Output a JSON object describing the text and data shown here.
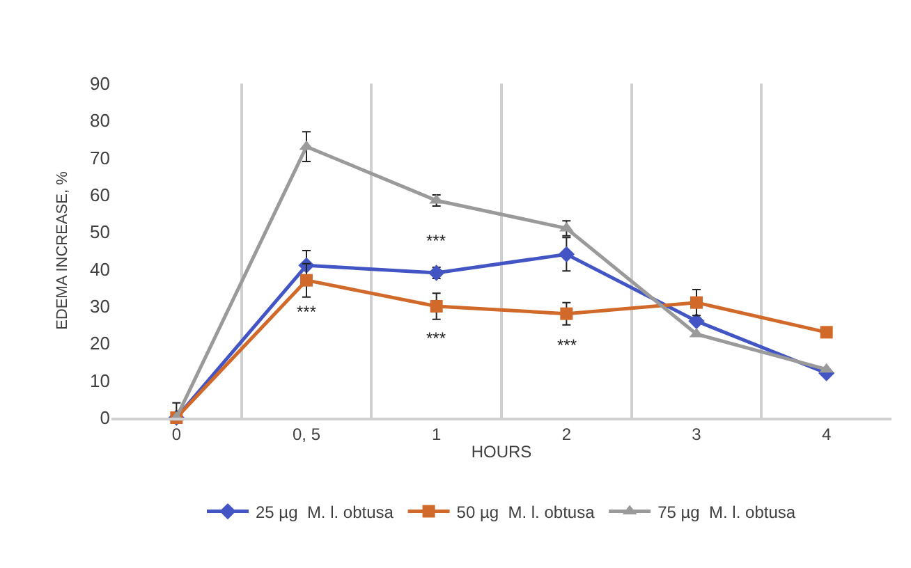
{
  "chart_data": {
    "type": "line",
    "xlabel": "HOURS",
    "ylabel": "EDEMA INCREASE, %",
    "categories": [
      "0",
      "0, 5",
      "1",
      "2",
      "3",
      "4"
    ],
    "series": [
      {
        "name": "25 µg  M. l. obtusa",
        "color": "#4355c4",
        "marker": "diamond",
        "values": [
          0,
          41,
          39,
          44,
          26,
          12
        ],
        "errors": [
          null,
          4,
          1.5,
          4.5,
          null,
          null
        ]
      },
      {
        "name": "50 µg  M. l. obtusa",
        "color": "#d0692a",
        "marker": "square",
        "values": [
          0,
          37,
          30,
          28,
          31,
          23
        ],
        "errors": [
          null,
          4.5,
          3.5,
          3,
          3.5,
          null
        ]
      },
      {
        "name": "75 µg  M. l. obtusa",
        "color": "#9a9a9a",
        "marker": "triangle",
        "values": [
          0,
          73,
          58.5,
          51,
          22.5,
          13
        ],
        "errors": [
          4,
          4,
          1.5,
          2,
          null,
          null
        ]
      }
    ],
    "ylim": [
      0,
      90
    ],
    "yticks": [
      0,
      10,
      20,
      30,
      40,
      50,
      60,
      70,
      80,
      90
    ],
    "grid": "x",
    "legend": "bottom",
    "annotations": [
      {
        "text": "***",
        "x": "0, 5",
        "y": 37
      },
      {
        "text": "***",
        "x": "1",
        "y": 39
      },
      {
        "text": "***",
        "x": "1",
        "y": 30
      },
      {
        "text": "***",
        "x": "2",
        "y": 28
      }
    ]
  }
}
